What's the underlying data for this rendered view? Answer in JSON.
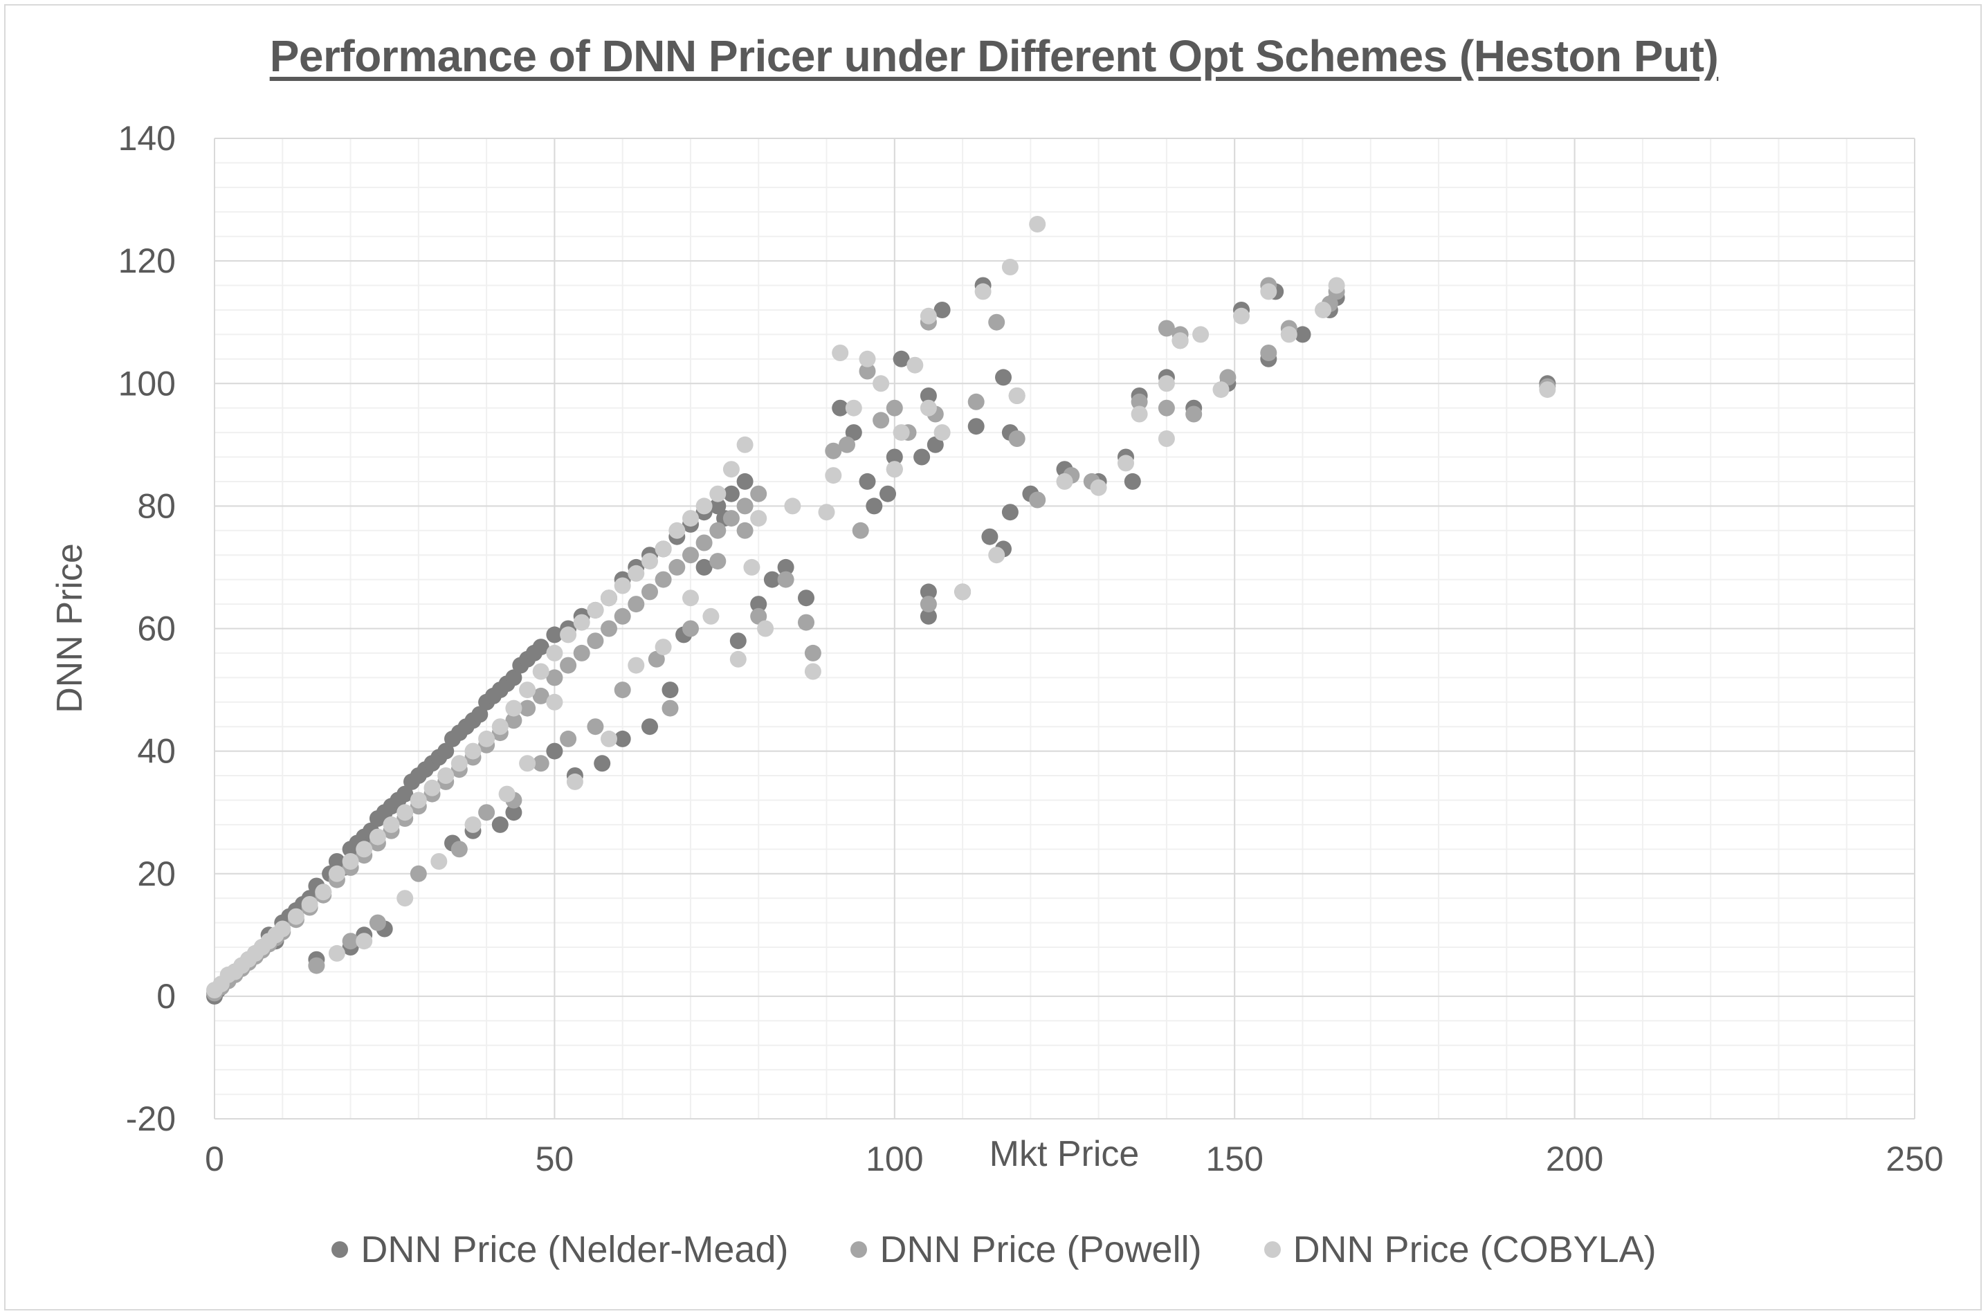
{
  "chart_data": {
    "type": "scatter",
    "title": "Performance of DNN Pricer under Different Opt Schemes (Heston Put)",
    "xlabel": "Mkt Price",
    "ylabel": "DNN Price",
    "xlim": [
      0,
      250
    ],
    "ylim": [
      -20,
      140
    ],
    "x_ticks": [
      "0",
      "50",
      "100",
      "150",
      "200",
      "250"
    ],
    "y_ticks": [
      "-20",
      "0",
      "20",
      "40",
      "60",
      "80",
      "100",
      "120",
      "140"
    ],
    "grid": true,
    "legend_position": "bottom",
    "series": [
      {
        "name": "DNN Price (Nelder-Mead)",
        "color": "#7f7f7f",
        "points": [
          [
            0,
            0
          ],
          [
            0.5,
            1
          ],
          [
            1,
            2
          ],
          [
            2,
            3
          ],
          [
            3,
            4
          ],
          [
            4,
            5
          ],
          [
            5,
            6
          ],
          [
            6,
            7
          ],
          [
            7,
            8
          ],
          [
            8,
            10
          ],
          [
            9,
            9
          ],
          [
            10,
            12
          ],
          [
            11,
            13
          ],
          [
            12,
            14
          ],
          [
            13,
            15
          ],
          [
            14,
            16
          ],
          [
            15,
            18
          ],
          [
            16,
            17
          ],
          [
            17,
            20
          ],
          [
            18,
            22
          ],
          [
            19,
            21
          ],
          [
            20,
            24
          ],
          [
            21,
            25
          ],
          [
            22,
            26
          ],
          [
            23,
            27
          ],
          [
            24,
            29
          ],
          [
            25,
            30
          ],
          [
            26,
            31
          ],
          [
            27,
            32
          ],
          [
            28,
            33
          ],
          [
            29,
            35
          ],
          [
            30,
            36
          ],
          [
            31,
            37
          ],
          [
            32,
            38
          ],
          [
            33,
            39
          ],
          [
            34,
            40
          ],
          [
            35,
            42
          ],
          [
            36,
            43
          ],
          [
            37,
            44
          ],
          [
            38,
            45
          ],
          [
            39,
            46
          ],
          [
            40,
            48
          ],
          [
            41,
            49
          ],
          [
            42,
            50
          ],
          [
            43,
            51
          ],
          [
            44,
            52
          ],
          [
            45,
            54
          ],
          [
            46,
            55
          ],
          [
            47,
            56
          ],
          [
            48,
            57
          ],
          [
            50,
            59
          ],
          [
            52,
            60
          ],
          [
            54,
            62
          ],
          [
            56,
            63
          ],
          [
            58,
            65
          ],
          [
            60,
            68
          ],
          [
            62,
            70
          ],
          [
            64,
            72
          ],
          [
            66,
            73
          ],
          [
            68,
            75
          ],
          [
            70,
            77
          ],
          [
            72,
            79
          ],
          [
            74,
            80
          ],
          [
            76,
            82
          ],
          [
            78,
            84
          ],
          [
            20,
            8
          ],
          [
            22,
            10
          ],
          [
            15,
            6
          ],
          [
            25,
            11
          ],
          [
            35,
            25
          ],
          [
            38,
            27
          ],
          [
            42,
            28
          ],
          [
            44,
            30
          ],
          [
            50,
            40
          ],
          [
            53,
            36
          ],
          [
            57,
            38
          ],
          [
            60,
            42
          ],
          [
            64,
            44
          ],
          [
            67,
            50
          ],
          [
            69,
            59
          ],
          [
            72,
            70
          ],
          [
            75,
            78
          ],
          [
            77,
            58
          ],
          [
            80,
            64
          ],
          [
            82,
            68
          ],
          [
            84,
            70
          ],
          [
            87,
            65
          ],
          [
            92,
            96
          ],
          [
            94,
            92
          ],
          [
            96,
            84
          ],
          [
            97,
            80
          ],
          [
            99,
            82
          ],
          [
            100,
            88
          ],
          [
            101,
            104
          ],
          [
            104,
            88
          ],
          [
            105,
            98
          ],
          [
            106,
            90
          ],
          [
            107,
            112
          ],
          [
            105,
            66
          ],
          [
            105,
            62
          ],
          [
            110,
            66
          ],
          [
            112,
            93
          ],
          [
            114,
            75
          ],
          [
            116,
            73
          ],
          [
            117,
            79
          ],
          [
            117,
            92
          ],
          [
            113,
            116
          ],
          [
            116,
            101
          ],
          [
            120,
            82
          ],
          [
            125,
            86
          ],
          [
            130,
            84
          ],
          [
            134,
            88
          ],
          [
            135,
            84
          ],
          [
            136,
            98
          ],
          [
            140,
            101
          ],
          [
            142,
            107
          ],
          [
            144,
            96
          ],
          [
            149,
            100
          ],
          [
            151,
            112
          ],
          [
            155,
            104
          ],
          [
            156,
            115
          ],
          [
            160,
            108
          ],
          [
            164,
            112
          ],
          [
            165,
            114
          ],
          [
            196,
            100
          ]
        ]
      },
      {
        "name": "DNN Price (Powell)",
        "color": "#a5a5a5",
        "points": [
          [
            0,
            0.5
          ],
          [
            1,
            1.5
          ],
          [
            2,
            2.5
          ],
          [
            3,
            3.5
          ],
          [
            4,
            4.5
          ],
          [
            5,
            5.5
          ],
          [
            6,
            6.5
          ],
          [
            7,
            7.5
          ],
          [
            8,
            8.5
          ],
          [
            9,
            9.5
          ],
          [
            10,
            10.5
          ],
          [
            12,
            12.5
          ],
          [
            14,
            14.5
          ],
          [
            16,
            16.5
          ],
          [
            18,
            19
          ],
          [
            20,
            21
          ],
          [
            22,
            23
          ],
          [
            24,
            25
          ],
          [
            26,
            27
          ],
          [
            28,
            29
          ],
          [
            30,
            31
          ],
          [
            32,
            33
          ],
          [
            34,
            35
          ],
          [
            36,
            37
          ],
          [
            38,
            39
          ],
          [
            40,
            41
          ],
          [
            42,
            43
          ],
          [
            44,
            45
          ],
          [
            46,
            47
          ],
          [
            48,
            49
          ],
          [
            50,
            52
          ],
          [
            52,
            54
          ],
          [
            54,
            56
          ],
          [
            56,
            58
          ],
          [
            58,
            60
          ],
          [
            60,
            62
          ],
          [
            62,
            64
          ],
          [
            64,
            66
          ],
          [
            66,
            68
          ],
          [
            68,
            70
          ],
          [
            70,
            72
          ],
          [
            72,
            74
          ],
          [
            74,
            76
          ],
          [
            76,
            78
          ],
          [
            78,
            80
          ],
          [
            80,
            82
          ],
          [
            15,
            5
          ],
          [
            20,
            9
          ],
          [
            24,
            12
          ],
          [
            30,
            20
          ],
          [
            36,
            24
          ],
          [
            40,
            30
          ],
          [
            44,
            32
          ],
          [
            48,
            38
          ],
          [
            52,
            42
          ],
          [
            56,
            44
          ],
          [
            60,
            50
          ],
          [
            65,
            55
          ],
          [
            67,
            47
          ],
          [
            70,
            60
          ],
          [
            74,
            71
          ],
          [
            78,
            76
          ],
          [
            80,
            62
          ],
          [
            84,
            68
          ],
          [
            87,
            61
          ],
          [
            88,
            56
          ],
          [
            91,
            89
          ],
          [
            93,
            90
          ],
          [
            95,
            76
          ],
          [
            96,
            102
          ],
          [
            98,
            94
          ],
          [
            100,
            86
          ],
          [
            100,
            96
          ],
          [
            102,
            92
          ],
          [
            105,
            110
          ],
          [
            106,
            95
          ],
          [
            105,
            64
          ],
          [
            112,
            97
          ],
          [
            115,
            110
          ],
          [
            118,
            98
          ],
          [
            118,
            91
          ],
          [
            121,
            81
          ],
          [
            126,
            85
          ],
          [
            129,
            84
          ],
          [
            136,
            97
          ],
          [
            140,
            96
          ],
          [
            140,
            109
          ],
          [
            142,
            108
          ],
          [
            144,
            95
          ],
          [
            149,
            101
          ],
          [
            155,
            105
          ],
          [
            155,
            116
          ],
          [
            158,
            109
          ],
          [
            164,
            113
          ],
          [
            165,
            115
          ],
          [
            196,
            99.5
          ]
        ]
      },
      {
        "name": "DNN Price (COBYLA)",
        "color": "#cccccc",
        "points": [
          [
            0,
            1
          ],
          [
            1,
            2
          ],
          [
            2,
            3.5
          ],
          [
            3,
            4
          ],
          [
            4,
            5
          ],
          [
            5,
            6
          ],
          [
            6,
            7
          ],
          [
            7,
            8
          ],
          [
            8,
            9
          ],
          [
            9,
            10
          ],
          [
            10,
            11
          ],
          [
            12,
            13
          ],
          [
            14,
            15
          ],
          [
            16,
            17
          ],
          [
            18,
            20
          ],
          [
            20,
            22
          ],
          [
            22,
            24
          ],
          [
            24,
            26
          ],
          [
            26,
            28
          ],
          [
            28,
            30
          ],
          [
            30,
            32
          ],
          [
            32,
            34
          ],
          [
            34,
            36
          ],
          [
            36,
            38
          ],
          [
            38,
            40
          ],
          [
            40,
            42
          ],
          [
            42,
            44
          ],
          [
            44,
            47
          ],
          [
            46,
            50
          ],
          [
            48,
            53
          ],
          [
            50,
            56
          ],
          [
            52,
            59
          ],
          [
            54,
            61
          ],
          [
            56,
            63
          ],
          [
            58,
            65
          ],
          [
            60,
            67
          ],
          [
            62,
            69
          ],
          [
            64,
            71
          ],
          [
            66,
            73
          ],
          [
            68,
            76
          ],
          [
            70,
            78
          ],
          [
            72,
            80
          ],
          [
            74,
            82
          ],
          [
            76,
            86
          ],
          [
            78,
            90
          ],
          [
            80,
            78
          ],
          [
            18,
            7
          ],
          [
            22,
            9
          ],
          [
            28,
            16
          ],
          [
            33,
            22
          ],
          [
            38,
            28
          ],
          [
            43,
            33
          ],
          [
            46,
            38
          ],
          [
            50,
            48
          ],
          [
            53,
            35
          ],
          [
            58,
            42
          ],
          [
            62,
            54
          ],
          [
            66,
            57
          ],
          [
            70,
            65
          ],
          [
            73,
            62
          ],
          [
            77,
            55
          ],
          [
            79,
            70
          ],
          [
            81,
            60
          ],
          [
            85,
            80
          ],
          [
            88,
            53
          ],
          [
            90,
            79
          ],
          [
            91,
            85
          ],
          [
            92,
            105
          ],
          [
            94,
            96
          ],
          [
            96,
            104
          ],
          [
            98,
            100
          ],
          [
            100,
            86
          ],
          [
            101,
            92
          ],
          [
            103,
            103
          ],
          [
            105,
            96
          ],
          [
            105,
            111
          ],
          [
            107,
            92
          ],
          [
            110,
            66
          ],
          [
            113,
            115
          ],
          [
            115,
            72
          ],
          [
            117,
            119
          ],
          [
            118,
            98
          ],
          [
            121,
            126
          ],
          [
            125,
            84
          ],
          [
            130,
            83
          ],
          [
            134,
            87
          ],
          [
            136,
            95
          ],
          [
            140,
            91
          ],
          [
            140,
            100
          ],
          [
            142,
            107
          ],
          [
            145,
            108
          ],
          [
            148,
            99
          ],
          [
            151,
            111
          ],
          [
            155,
            115
          ],
          [
            158,
            108
          ],
          [
            163,
            112
          ],
          [
            165,
            116
          ],
          [
            196,
            99
          ]
        ]
      }
    ]
  }
}
